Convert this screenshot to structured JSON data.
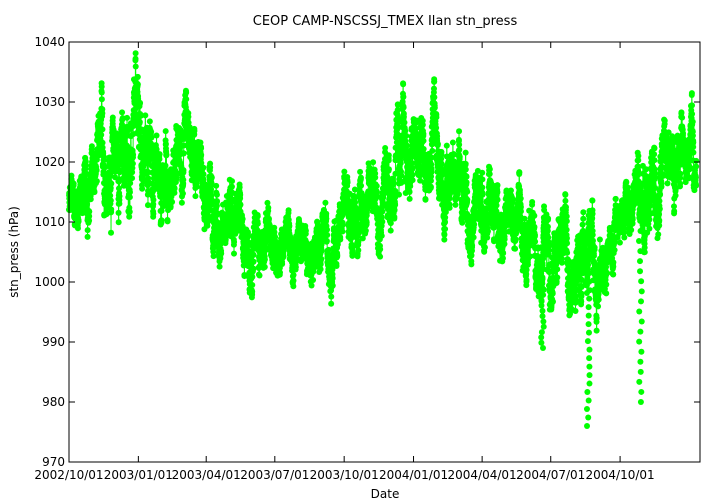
{
  "chart_data": {
    "type": "scatter",
    "title": "CEOP CAMP-NSCSSJ_TMEX Ilan  stn_press",
    "xlabel": "Date",
    "ylabel": "stn_press (hPa)",
    "ylim": [
      970,
      1040
    ],
    "yticks": [
      970,
      980,
      990,
      1000,
      1010,
      1020,
      1030,
      1040
    ],
    "xlim": [
      "2002-10-01",
      "2005-01-15"
    ],
    "xticks": [
      "2002/10/01",
      "2003/01/01",
      "2003/04/01",
      "2003/07/01",
      "2003/10/01",
      "2004/01/01",
      "2004/04/01",
      "2004/07/01",
      "2004/10/01"
    ],
    "grid": false,
    "legend": "none",
    "colors": {
      "series": "#00ff00",
      "axis": "#000000"
    },
    "series": [
      {
        "name": "",
        "x": [
          "2002-10-01",
          "2002-10-15",
          "2002-11-01",
          "2002-11-15",
          "2002-12-01",
          "2002-12-15",
          "2003-01-01",
          "2003-01-15",
          "2003-02-01",
          "2003-02-15",
          "2003-03-01",
          "2003-03-15",
          "2003-04-01",
          "2003-04-15",
          "2003-05-01",
          "2003-05-15",
          "2003-06-01",
          "2003-06-15",
          "2003-07-01",
          "2003-07-15",
          "2003-08-01",
          "2003-08-15",
          "2003-09-01",
          "2003-09-15",
          "2003-10-01",
          "2003-10-15",
          "2003-11-01",
          "2003-11-15",
          "2003-12-01",
          "2003-12-15",
          "2004-01-01",
          "2004-01-15",
          "2004-02-01",
          "2004-02-15",
          "2004-03-01",
          "2004-03-15",
          "2004-04-01",
          "2004-04-15",
          "2004-05-01",
          "2004-05-15",
          "2004-06-01",
          "2004-06-15",
          "2004-07-01",
          "2004-07-15",
          "2004-08-01",
          "2004-08-15",
          "2004-09-01",
          "2004-09-15",
          "2004-10-01",
          "2004-10-15",
          "2004-11-01",
          "2004-11-15",
          "2004-12-01",
          "2004-12-15",
          "2005-01-01"
        ],
        "y": [
          1012,
          1014,
          1016,
          1019,
          1021,
          1020,
          1022,
          1021,
          1020,
          1019,
          1018,
          1017,
          1015,
          1013,
          1011,
          1009,
          1007,
          1006,
          1007,
          1006,
          1006,
          1005,
          1006,
          1008,
          1010,
          1012,
          1014,
          1016,
          1018,
          1019,
          1020,
          1019,
          1020,
          1019,
          1017,
          1015,
          1013,
          1012,
          1011,
          1010,
          1009,
          1007,
          1006,
          1005,
          1005,
          1004,
          1005,
          1007,
          1010,
          1012,
          1014,
          1016,
          1017,
          1018,
          1019
        ],
        "spread": [
          4,
          5,
          6,
          7,
          8,
          8,
          9,
          8,
          8,
          7,
          7,
          6,
          6,
          6,
          5,
          5,
          5,
          4,
          4,
          4,
          4,
          4,
          4,
          5,
          5,
          5,
          6,
          6,
          7,
          8,
          9,
          8,
          8,
          7,
          7,
          6,
          6,
          6,
          5,
          5,
          6,
          6,
          8,
          7,
          8,
          10,
          8,
          6,
          6,
          6,
          7,
          7,
          7,
          7,
          6
        ],
        "spikes": [
          {
            "date": "2004-06-20",
            "min": 989
          },
          {
            "date": "2004-08-20",
            "min": 976
          },
          {
            "date": "2004-10-28",
            "min": 980
          }
        ]
      }
    ]
  }
}
